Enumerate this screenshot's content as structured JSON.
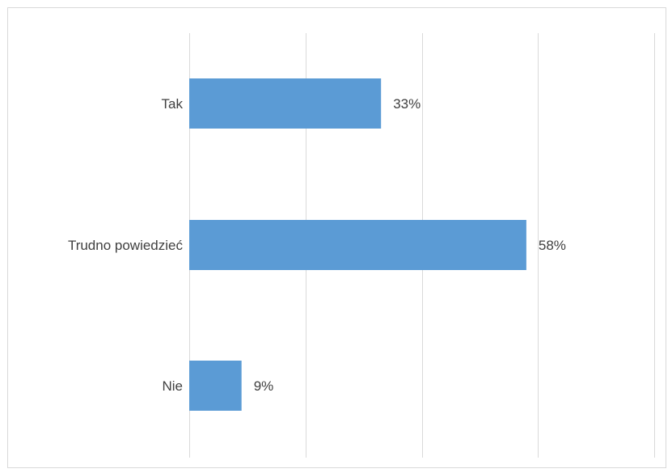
{
  "chart_data": {
    "type": "bar",
    "orientation": "horizontal",
    "categories": [
      "Tak",
      "Trudno powiedzieć",
      "Nie"
    ],
    "values": [
      33,
      58,
      9
    ],
    "data_labels": [
      "33%",
      "58%",
      "9%"
    ],
    "unit": "%",
    "xlim": [
      0,
      80
    ],
    "x_gridlines": [
      0,
      20,
      40,
      60,
      80
    ],
    "grid": true,
    "legend": "none",
    "title": "",
    "xlabel": "",
    "ylabel": "",
    "colors": {
      "bar": "#5b9bd5",
      "gridline": "#d9d9d9",
      "text": "#404040",
      "border": "#d9d9d9"
    }
  }
}
